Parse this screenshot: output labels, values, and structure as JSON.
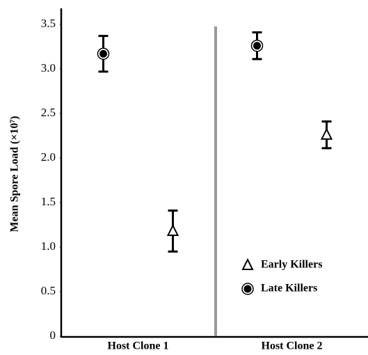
{
  "chart_data": {
    "type": "errorpoint",
    "ylabel": "Mean Spore Load (×10⁷)",
    "categories": [
      "Host Clone 1",
      "Host Clone 2"
    ],
    "series": [
      {
        "name": "Early Killers",
        "marker": "triangle",
        "color": "#000000",
        "values": [
          1.18,
          2.26
        ],
        "errors": [
          0.23,
          0.15
        ]
      },
      {
        "name": "Late Killers",
        "marker": "circle",
        "color": "#000000",
        "values": [
          3.17,
          3.26
        ],
        "errors": [
          0.2,
          0.15
        ]
      }
    ],
    "ylim": [
      0,
      3.5
    ],
    "yticks": [
      0,
      0.5,
      {
        "value": 1,
        "label": "1.0"
      },
      1.5,
      {
        "value": 2,
        "label": "2.0"
      },
      2.5,
      {
        "value": 3,
        "label": "3.0"
      },
      3.5
    ],
    "legend": "lower right"
  }
}
